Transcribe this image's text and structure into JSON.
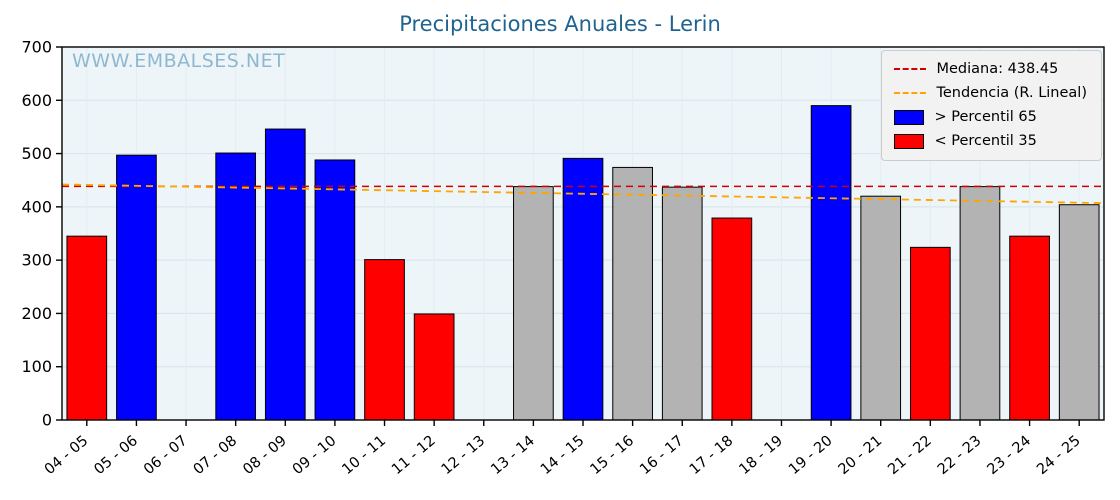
{
  "title": "Precipitaciones Anuales - Lerin",
  "watermark": "WWW.EMBALSES.NET",
  "colors": {
    "title": "#1f6391",
    "watermark": "#8fb8d0",
    "plot_bg": "#edf5f8",
    "grid_h": "#d6e3e8",
    "grid_v": "#e3edf1",
    "axis": "#000000",
    "median": "#d40000",
    "trend": "#ffa500",
    "bar": {
      "blue": "#0000ff",
      "red": "#ff0000",
      "gray": "#b3b3b3"
    },
    "legend_bg": "#f2f2f2",
    "legend_border": "#cccccc"
  },
  "chart_data": {
    "type": "bar",
    "title": "Precipitaciones Anuales - Lerin",
    "xlabel": "",
    "ylabel": "",
    "ylim": [
      0,
      700
    ],
    "yticks": [
      0,
      100,
      200,
      300,
      400,
      500,
      600,
      700
    ],
    "grid": true,
    "legend_position": "upper right",
    "categories": [
      "04 - 05",
      "05 - 06",
      "06 - 07",
      "07 - 08",
      "08 - 09",
      "09 - 10",
      "10 - 11",
      "11 - 12",
      "12 - 13",
      "13 - 14",
      "14 - 15",
      "15 - 16",
      "16 - 17",
      "17 - 18",
      "18 - 19",
      "19 - 20",
      "20 - 21",
      "21 - 22",
      "22 - 23",
      "23 - 24",
      "24 - 25"
    ],
    "values": [
      345,
      497,
      null,
      501,
      546,
      488,
      301,
      199,
      null,
      438,
      491,
      474,
      437,
      379,
      null,
      590,
      420,
      324,
      438,
      345,
      404
    ],
    "bar_colors": [
      "red",
      "blue",
      null,
      "blue",
      "blue",
      "blue",
      "red",
      "red",
      null,
      "gray",
      "blue",
      "gray",
      "gray",
      "red",
      null,
      "blue",
      "gray",
      "red",
      "gray",
      "red",
      "gray"
    ],
    "median": 438.45,
    "trend_line": {
      "start": 442,
      "end": 407
    },
    "legend": [
      {
        "label": "Mediana: 438.45",
        "swatch": "dashed-line",
        "color": "#d40000"
      },
      {
        "label": "Tendencia (R. Lineal)",
        "swatch": "dashed-line",
        "color": "#ffa500"
      },
      {
        "label": "> Percentil 65",
        "swatch": "rect",
        "color": "#0000ff"
      },
      {
        "label": "< Percentil 35",
        "swatch": "rect",
        "color": "#ff0000"
      }
    ]
  }
}
